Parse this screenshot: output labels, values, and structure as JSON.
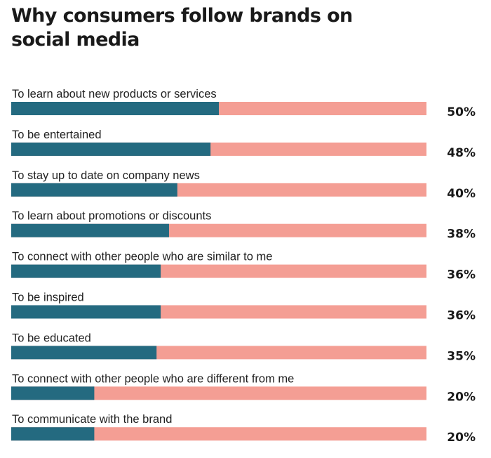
{
  "colors": {
    "bar_fill": "#246a80",
    "bar_track": "#f49e94",
    "text": "#1a1a1a"
  },
  "chart_data": {
    "type": "bar",
    "orientation": "horizontal",
    "title": "Why consumers follow brands on social media",
    "categories": [
      "To learn about new products or services",
      "To be entertained",
      "To stay up to date on company news",
      "To learn about promotions or discounts",
      "To connect with other people who are similar to me",
      "To be inspired",
      "To be educated",
      "To connect with other people who are different from me",
      "To communicate with the brand"
    ],
    "values": [
      50,
      48,
      40,
      38,
      36,
      36,
      35,
      20,
      20
    ],
    "value_labels": [
      "50%",
      "48%",
      "40%",
      "38%",
      "36%",
      "36%",
      "35%",
      "20%",
      "20%"
    ],
    "xlim": [
      0,
      100
    ],
    "unit": "%",
    "grid": false,
    "legend": "none"
  }
}
